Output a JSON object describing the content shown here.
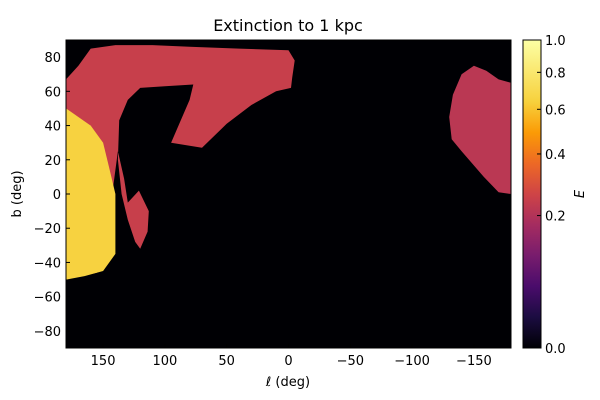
{
  "chart_data": {
    "type": "heatmap",
    "title": "Extinction to 1 kpc",
    "xlabel": "ℓ (deg)",
    "ylabel": "b (deg)",
    "colorbar_label": "E",
    "xlim": [
      180,
      -180
    ],
    "ylim": [
      -90,
      90
    ],
    "x_ticks": [
      {
        "value": 150,
        "label": "150"
      },
      {
        "value": 100,
        "label": "100"
      },
      {
        "value": 50,
        "label": "50"
      },
      {
        "value": 0,
        "label": "0"
      },
      {
        "value": -50,
        "label": "−50"
      },
      {
        "value": -100,
        "label": "−100"
      },
      {
        "value": -150,
        "label": "−150"
      }
    ],
    "y_ticks": [
      {
        "value": 80,
        "label": "80"
      },
      {
        "value": 60,
        "label": "60"
      },
      {
        "value": 40,
        "label": "40"
      },
      {
        "value": 20,
        "label": "20"
      },
      {
        "value": 0,
        "label": "0"
      },
      {
        "value": -20,
        "label": "−20"
      },
      {
        "value": -40,
        "label": "−40"
      },
      {
        "value": -60,
        "label": "−60"
      },
      {
        "value": -80,
        "label": "−80"
      }
    ],
    "colorbar": {
      "min": 0.0,
      "max": 1.0,
      "scale": "nonlinear",
      "colormap": "inferno",
      "ticks": [
        {
          "value": 1.0,
          "label": "1.0"
        },
        {
          "value": 0.8,
          "label": "0.8"
        },
        {
          "value": 0.6,
          "label": "0.6"
        },
        {
          "value": 0.4,
          "label": "0.4"
        },
        {
          "value": 0.2,
          "label": "0.2"
        },
        {
          "value": 0.0,
          "label": "0.0"
        }
      ]
    },
    "background_color": "#000004",
    "regions": [
      {
        "polygon": [
          [
            180,
            67
          ],
          [
            170,
            75
          ],
          [
            160,
            85
          ],
          [
            140,
            87
          ],
          [
            110,
            87
          ],
          [
            80,
            86
          ],
          [
            40,
            85
          ],
          [
            0,
            84
          ],
          [
            -5,
            78
          ],
          [
            -3,
            68
          ],
          [
            -2,
            62
          ],
          [
            10,
            60
          ],
          [
            30,
            52
          ],
          [
            50,
            41
          ],
          [
            70,
            27
          ],
          [
            95,
            30
          ],
          [
            80,
            55
          ],
          [
            77,
            64
          ],
          [
            100,
            63
          ],
          [
            120,
            62
          ],
          [
            130,
            55
          ],
          [
            137,
            43
          ],
          [
            138,
            20
          ],
          [
            135,
            0
          ],
          [
            130,
            -15
          ],
          [
            124,
            -28
          ],
          [
            120,
            -32
          ],
          [
            114,
            -22
          ],
          [
            113,
            -10
          ],
          [
            121,
            2
          ],
          [
            130,
            -5
          ],
          [
            133,
            9
          ],
          [
            138,
            25
          ],
          [
            150,
            -40
          ],
          [
            155,
            -46
          ],
          [
            162,
            -47
          ],
          [
            170,
            -48
          ],
          [
            180,
            -50
          ]
        ],
        "mean_E": 0.25
      },
      {
        "polygon": [
          [
            -140,
            70
          ],
          [
            -150,
            75
          ],
          [
            -160,
            72
          ],
          [
            -170,
            67
          ],
          [
            -180,
            65
          ],
          [
            -180,
            0
          ],
          [
            -170,
            1
          ],
          [
            -158,
            10
          ],
          [
            -140,
            25
          ],
          [
            -132,
            32
          ],
          [
            -130,
            45
          ],
          [
            -133,
            58
          ]
        ],
        "mean_E": 0.22
      },
      {
        "polygon": [
          [
            180,
            50
          ],
          [
            160,
            40
          ],
          [
            150,
            30
          ],
          [
            145,
            15
          ],
          [
            140,
            0
          ],
          [
            140,
            -20
          ],
          [
            140,
            -35
          ],
          [
            150,
            -45
          ],
          [
            165,
            -48
          ],
          [
            180,
            -50
          ]
        ],
        "mean_E": 0.65
      }
    ]
  }
}
